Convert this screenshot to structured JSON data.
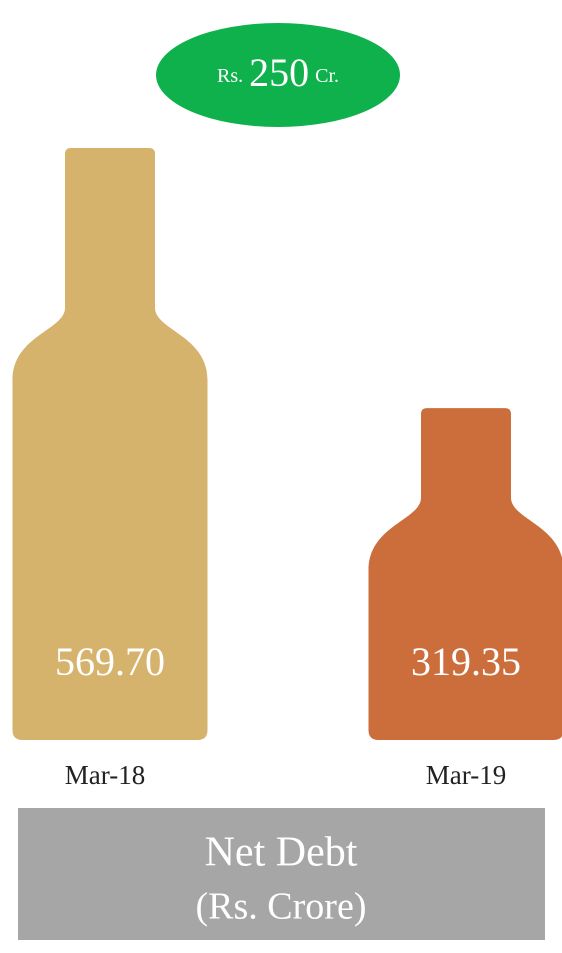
{
  "chart_data": {
    "type": "bottle",
    "annotation": [
      "Rs.",
      "250",
      "Cr."
    ],
    "categories": [
      "Mar-18",
      "Mar-19"
    ],
    "values": [
      569.7,
      319.35
    ],
    "value_labels": [
      "569.70",
      "319.35"
    ],
    "colors": [
      "#d6b36c",
      "#cb6e3c"
    ],
    "title": "Net Debt",
    "subtitle": "(Rs. Crore)"
  }
}
